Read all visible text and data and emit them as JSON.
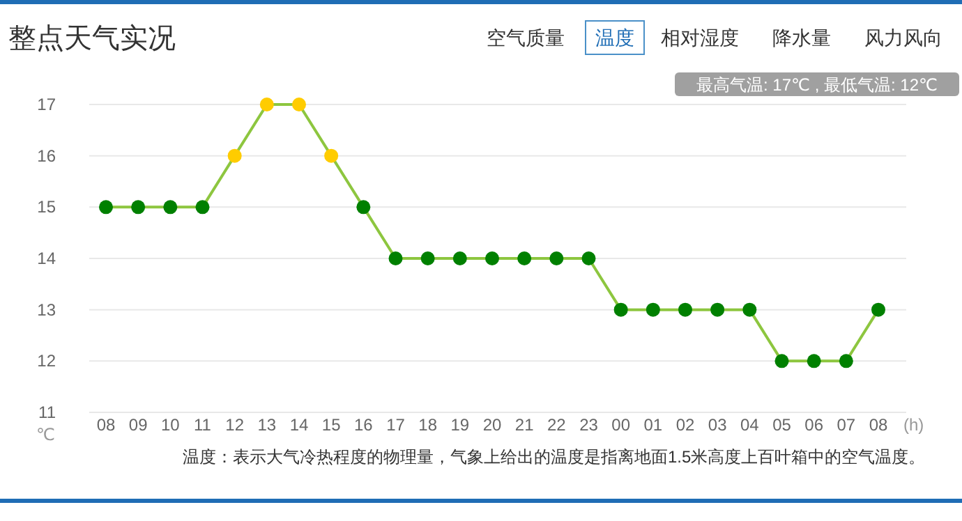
{
  "chart_data": {
    "type": "line",
    "title": "整点天气实况",
    "xlabel": "(h)",
    "ylabel": "℃",
    "categories": [
      "08",
      "09",
      "10",
      "11",
      "12",
      "13",
      "14",
      "15",
      "16",
      "17",
      "18",
      "19",
      "20",
      "21",
      "22",
      "23",
      "00",
      "01",
      "02",
      "03",
      "04",
      "05",
      "06",
      "07",
      "08"
    ],
    "series": [
      {
        "color": "#8dc63f",
        "values": [
          15,
          15,
          15,
          15,
          16,
          17,
          17,
          16,
          15,
          14,
          14,
          14,
          14,
          14,
          14,
          14,
          13,
          13,
          13,
          13,
          13,
          12,
          12,
          12,
          13
        ],
        "colors": [
          "#008000",
          "#008000",
          "#008000",
          "#008000",
          "#ffcc00",
          "#ffcc00",
          "#ffcc00",
          "#ffcc00",
          "#008000",
          "#008000",
          "#008000",
          "#008000",
          "#008000",
          "#008000",
          "#008000",
          "#008000",
          "#008000",
          "#008000",
          "#008000",
          "#008000",
          "#008000",
          "#008000",
          "#008000",
          "#008000",
          "#008000"
        ]
      }
    ],
    "ylim": [
      11,
      17
    ],
    "yticks": [
      11,
      12,
      13,
      14,
      15,
      16,
      17
    ],
    "grid": "y",
    "marker": "circle",
    "line_style": "solid",
    "annotations": [
      "空气质量",
      "温度",
      "相对湿度",
      "降水量",
      "风力风向",
      "最高气温: 17℃ , 最低气温: 12℃",
      "温度：表示大气冷热程度的物理量，气象上给出的温度是指离地面1.5米高度上百叶箱中的空气温度。"
    ]
  }
}
